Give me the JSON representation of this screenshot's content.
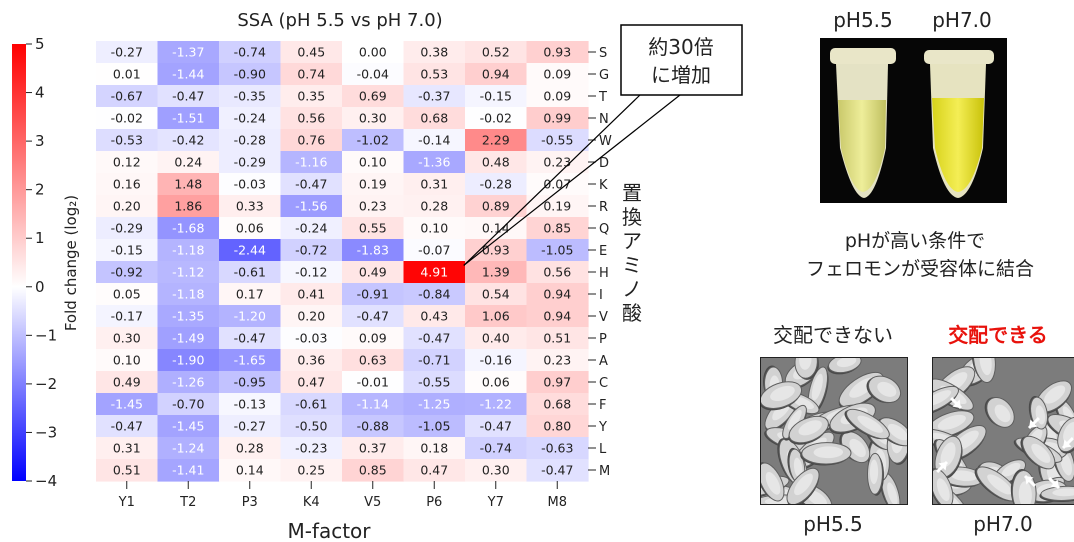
{
  "chart_data": {
    "type": "heatmap",
    "title": "SSA (pH 5.5 vs pH 7.0)",
    "xlabel": "M-factor",
    "ylabel": "置換アミノ酸",
    "colorbar_label": "Fold change (log₂)",
    "colorbar_range": [
      -4,
      5
    ],
    "colorbar_ticks": [
      "5",
      "4",
      "3",
      "2",
      "1",
      "0",
      "−1",
      "−2",
      "−3",
      "−4"
    ],
    "colors": {
      "low": "#0000ff",
      "mid": "#ffffff",
      "high": "#ff0000"
    },
    "columns": [
      "Y1",
      "T2",
      "P3",
      "K4",
      "V5",
      "P6",
      "Y7",
      "M8"
    ],
    "rows": [
      "S",
      "G",
      "T",
      "N",
      "W",
      "D",
      "K",
      "R",
      "Q",
      "E",
      "H",
      "I",
      "V",
      "P",
      "A",
      "C",
      "F",
      "Y",
      "L",
      "M"
    ],
    "values": [
      [
        "-0.27",
        "-1.37",
        "-0.74",
        "0.45",
        "0.00",
        "0.38",
        "0.52",
        "0.93"
      ],
      [
        "0.01",
        "-1.44",
        "-0.90",
        "0.74",
        "-0.04",
        "0.53",
        "0.94",
        "0.09"
      ],
      [
        "-0.67",
        "-0.47",
        "-0.35",
        "0.35",
        "0.69",
        "-0.37",
        "-0.15",
        "0.09"
      ],
      [
        "-0.02",
        "-1.51",
        "-0.24",
        "0.56",
        "0.30",
        "0.68",
        "-0.02",
        "0.99"
      ],
      [
        "-0.53",
        "-0.42",
        "-0.28",
        "0.76",
        "-1.02",
        "-0.14",
        "2.29",
        "-0.55"
      ],
      [
        "0.12",
        "0.24",
        "-0.29",
        "-1.16",
        "0.10",
        "-1.36",
        "0.48",
        "0.23"
      ],
      [
        "0.16",
        "1.48",
        "-0.03",
        "-0.47",
        "0.19",
        "0.31",
        "-0.28",
        "0.07"
      ],
      [
        "0.20",
        "1.86",
        "0.33",
        "-1.56",
        "0.23",
        "0.28",
        "0.89",
        "0.19"
      ],
      [
        "-0.29",
        "-1.68",
        "0.06",
        "-0.24",
        "0.55",
        "0.10",
        "0.14",
        "0.85"
      ],
      [
        "-0.15",
        "-1.18",
        "-2.44",
        "-0.72",
        "-1.83",
        "-0.07",
        "0.93",
        "-1.05"
      ],
      [
        "-0.92",
        "-1.12",
        "-0.61",
        "-0.12",
        "0.49",
        "4.91",
        "1.39",
        "0.56"
      ],
      [
        "0.05",
        "-1.18",
        "0.17",
        "0.41",
        "-0.91",
        "-0.84",
        "0.54",
        "0.94"
      ],
      [
        "-0.17",
        "-1.35",
        "-1.20",
        "0.20",
        "-0.47",
        "0.43",
        "1.06",
        "0.94"
      ],
      [
        "0.30",
        "-1.49",
        "-0.47",
        "-0.03",
        "0.09",
        "-0.47",
        "0.40",
        "0.51"
      ],
      [
        "0.10",
        "-1.90",
        "-1.65",
        "0.36",
        "0.63",
        "-0.71",
        "-0.16",
        "0.23"
      ],
      [
        "0.49",
        "-1.26",
        "-0.95",
        "0.47",
        "-0.01",
        "-0.55",
        "0.06",
        "0.97"
      ],
      [
        "-1.45",
        "-0.70",
        "-0.13",
        "-0.61",
        "-1.14",
        "-1.25",
        "-1.22",
        "0.68"
      ],
      [
        "-0.47",
        "-1.45",
        "-0.27",
        "-0.50",
        "-0.88",
        "-1.05",
        "-0.47",
        "0.80"
      ],
      [
        "0.31",
        "-1.24",
        "0.28",
        "-0.23",
        "0.37",
        "0.18",
        "-0.74",
        "-0.63"
      ],
      [
        "0.51",
        "-1.41",
        "0.14",
        "0.25",
        "0.85",
        "0.47",
        "0.30",
        "-0.47"
      ]
    ],
    "annotation": {
      "text_line1": "約30倍",
      "text_line2": "に増加",
      "target_row": "H",
      "target_col": "P6"
    }
  },
  "photos": {
    "tubes": {
      "label_left": "pH5.5",
      "label_right": "pH7.0",
      "caption_line1": "pHが高い条件で",
      "caption_line2": "フェロモンが受容体に結合"
    },
    "cells": {
      "heading_left": "交配できない",
      "heading_right": "交配できる",
      "heading_right_color": "#e8120c",
      "label_left": "pH5.5",
      "label_right": "pH7.0"
    }
  }
}
